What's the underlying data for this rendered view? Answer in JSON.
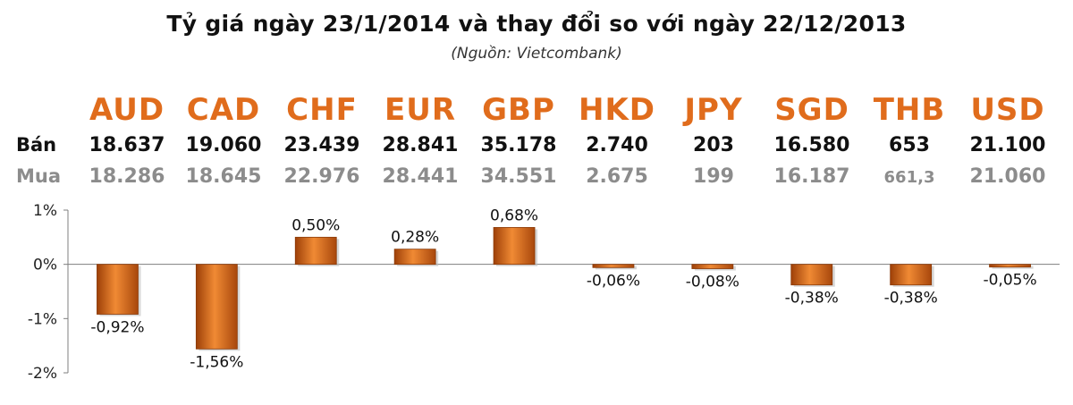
{
  "title": "Tỷ giá ngày 23/1/2014 và thay đổi so với ngày 22/12/2013",
  "source": "(Nguồn: Vietcombank)",
  "row_labels": {
    "sell": "Bán",
    "buy": "Mua"
  },
  "colors": {
    "currency": "#e06c1c",
    "bar": "#d9661b",
    "buy_text": "#8c8c8c"
  },
  "table": {
    "currencies": [
      "AUD",
      "CAD",
      "CHF",
      "EUR",
      "GBP",
      "HKD",
      "JPY",
      "SGD",
      "THB",
      "USD"
    ],
    "sell": [
      "18.637",
      "19.060",
      "23.439",
      "28.841",
      "35.178",
      "2.740",
      "203",
      "16.580",
      "653",
      "21.100"
    ],
    "buy": [
      "18.286",
      "18.645",
      "22.976",
      "28.441",
      "34.551",
      "2.675",
      "199",
      "16.187",
      "661,3",
      "21.060"
    ]
  },
  "chart_data": {
    "type": "bar",
    "categories": [
      "AUD",
      "CAD",
      "CHF",
      "EUR",
      "GBP",
      "HKD",
      "JPY",
      "SGD",
      "THB",
      "USD"
    ],
    "values": [
      -0.92,
      -1.56,
      0.5,
      0.28,
      0.68,
      -0.06,
      -0.08,
      -0.38,
      -0.38,
      -0.05
    ],
    "data_labels": [
      "-0,92%",
      "-1,56%",
      "0,50%",
      "0,28%",
      "0,68%",
      "-0,06%",
      "-0,08%",
      "-0,38%",
      "-0,38%",
      "-0,05%"
    ],
    "title": "",
    "xlabel": "",
    "ylabel": "",
    "ylim": [
      -2,
      1
    ],
    "yticks": [
      1,
      0,
      -1,
      -2
    ],
    "ytick_labels": [
      "1%",
      "0%",
      "-1%",
      "-2%"
    ],
    "grid": false,
    "legend": "none"
  }
}
